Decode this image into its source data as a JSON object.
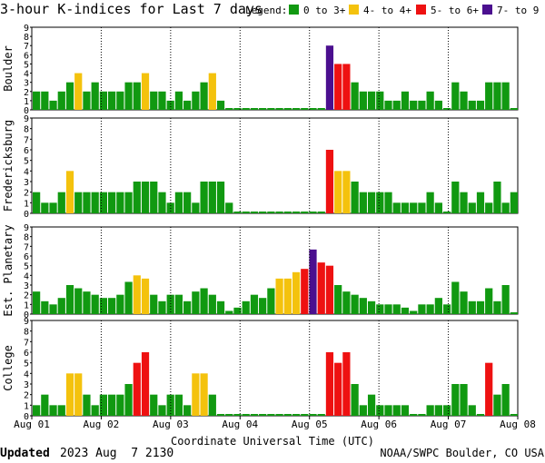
{
  "title": "3-hour K-indices for Last 7 days",
  "legend": {
    "label": "Legend:",
    "items": [
      {
        "label": "0 to 3+",
        "color": "#119911"
      },
      {
        "label": "4- to 4+",
        "color": "#f4c20d"
      },
      {
        "label": "5- to 6+",
        "color": "#ee1111"
      },
      {
        "label": "7- to 9",
        "color": "#4b0f8f"
      }
    ]
  },
  "footer": {
    "updated_label": "Updated",
    "updated_value": "2023 Aug  7 2130",
    "source": "NOAA/SWPC Boulder, CO USA"
  },
  "chart_data": {
    "type": "bar",
    "xlabel": "Coordinate Universal Time (UTC)",
    "x_ticks": [
      "Aug 01",
      "Aug 02",
      "Aug 03",
      "Aug 04",
      "Aug 05",
      "Aug 06",
      "Aug 07",
      "Aug 08"
    ],
    "ylim": [
      0,
      9
    ],
    "y_ticks": [
      "0",
      "1",
      "2",
      "3",
      "4",
      "5",
      "6",
      "7",
      "8",
      "9"
    ],
    "panels": [
      {
        "name": "Boulder",
        "values": [
          2,
          2,
          1,
          2,
          3,
          4,
          2,
          3,
          2,
          2,
          2,
          3,
          3,
          4,
          2,
          2,
          1,
          2,
          1,
          2,
          3,
          4,
          1,
          0,
          0,
          0,
          0,
          0,
          0,
          0,
          0,
          0,
          0,
          0,
          0,
          7,
          5,
          5,
          3,
          2,
          2,
          2,
          1,
          1,
          2,
          1,
          1,
          2,
          1,
          0,
          3,
          2,
          1,
          1,
          3,
          3,
          3,
          0
        ]
      },
      {
        "name": "Fredericksburg",
        "values": [
          2,
          1,
          1,
          2,
          4,
          2,
          2,
          2,
          2,
          2,
          2,
          2,
          3,
          3,
          3,
          2,
          1,
          2,
          2,
          1,
          3,
          3,
          3,
          1,
          0,
          0,
          0,
          0,
          0,
          0,
          0,
          0,
          0,
          0,
          0,
          6,
          4,
          4,
          3,
          2,
          2,
          2,
          2,
          1,
          1,
          1,
          1,
          2,
          1,
          0,
          3,
          2,
          1,
          2,
          1,
          3,
          1,
          2
        ]
      },
      {
        "name": "Est. Planetary",
        "values": [
          2.33,
          1.33,
          1,
          1.67,
          3,
          2.67,
          2.33,
          2,
          1.67,
          1.67,
          2,
          3.33,
          4,
          3.67,
          2,
          1.33,
          2,
          2,
          1.33,
          2.33,
          2.67,
          2,
          1.33,
          0.33,
          0.67,
          1.33,
          2,
          1.67,
          2.67,
          3.67,
          3.67,
          4.33,
          4.67,
          6.67,
          5.33,
          5,
          3,
          2.33,
          2,
          1.67,
          1.33,
          1,
          1,
          1,
          0.67,
          0.33,
          1,
          1,
          1.67,
          1,
          3.33,
          2.33,
          1.33,
          1.33,
          2.67,
          1.33,
          3,
          0
        ]
      },
      {
        "name": "College",
        "values": [
          1,
          2,
          1,
          1,
          4,
          4,
          2,
          1,
          2,
          2,
          2,
          3,
          5,
          6,
          2,
          1,
          2,
          2,
          1,
          4,
          4,
          2,
          0,
          0,
          0,
          0,
          0,
          0,
          0,
          0,
          0,
          0,
          0,
          0,
          0,
          6,
          5,
          6,
          3,
          1,
          2,
          1,
          1,
          1,
          1,
          0,
          0,
          1,
          1,
          1,
          3,
          3,
          1,
          0,
          5,
          2,
          3,
          0
        ]
      }
    ]
  }
}
